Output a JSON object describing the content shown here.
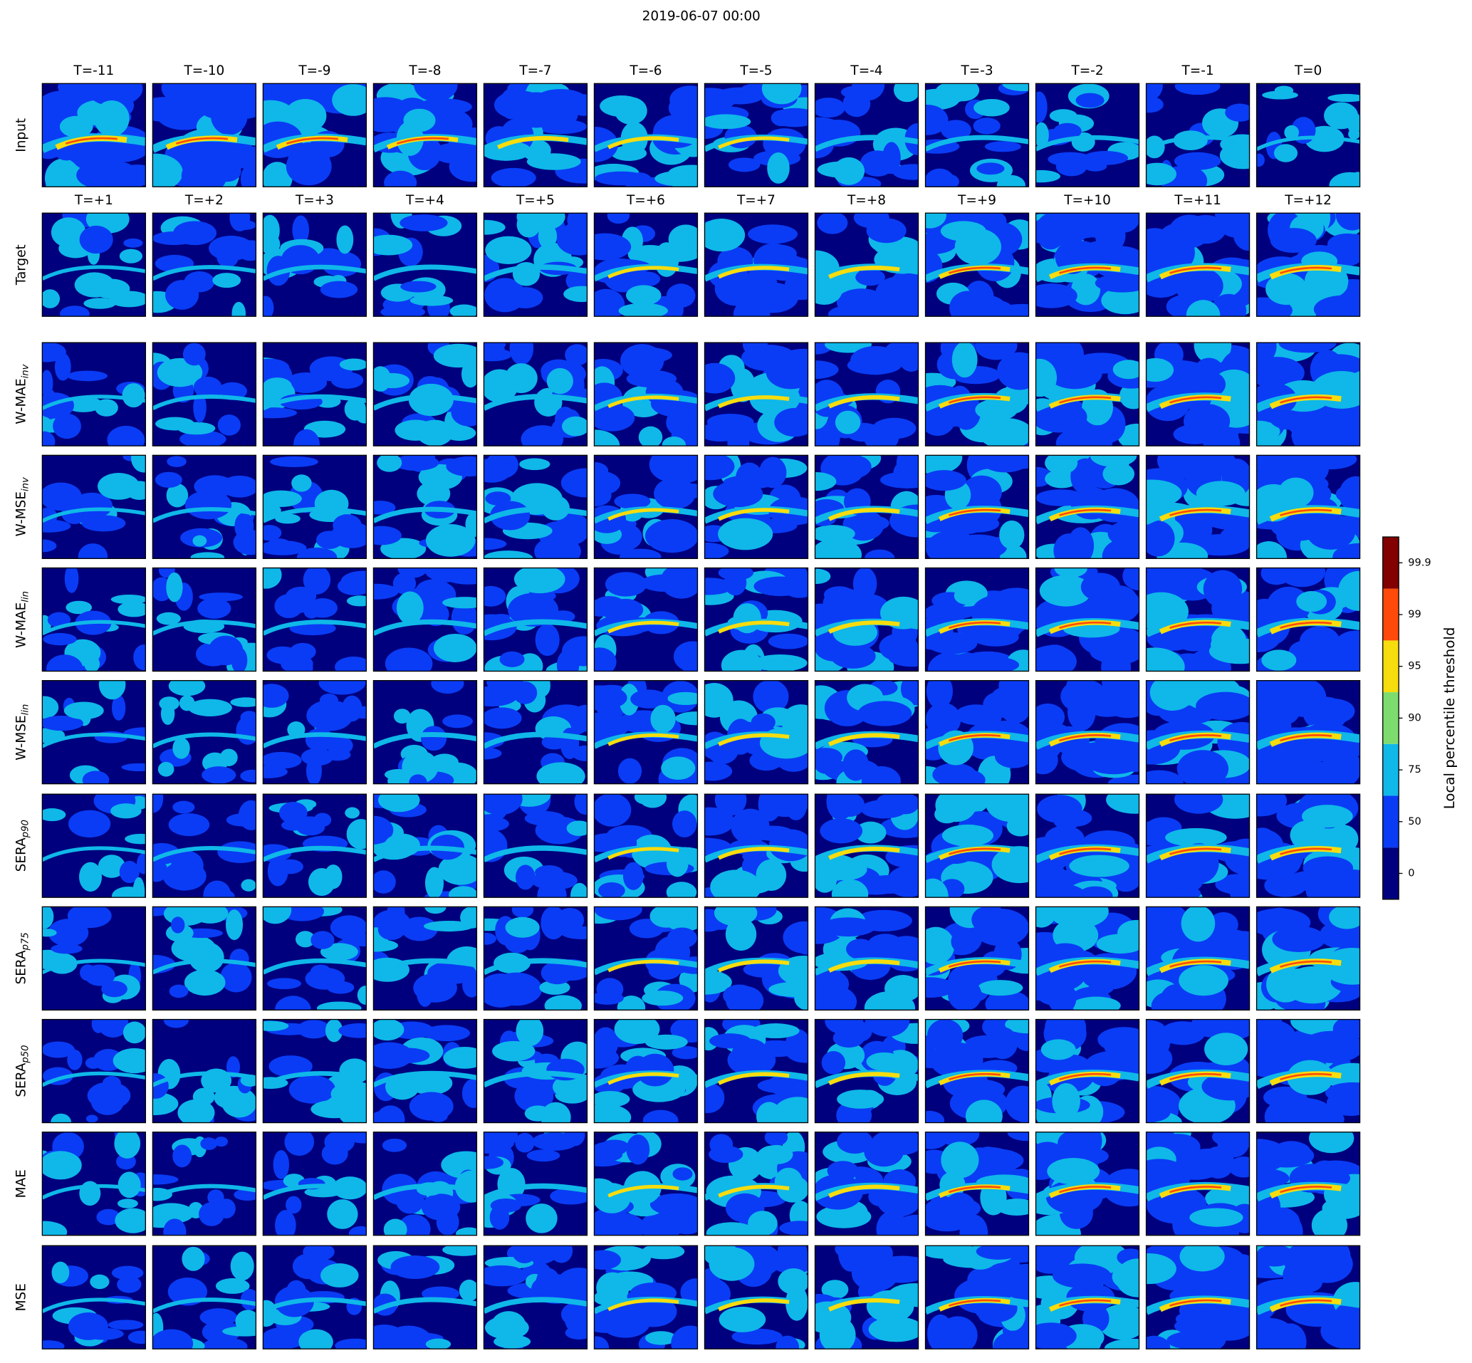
{
  "chart_data": {
    "type": "heatmap-grid",
    "title": "2019-06-07 00:00",
    "input_columns": [
      "T=-11",
      "T=-10",
      "T=-9",
      "T=-8",
      "T=-7",
      "T=-6",
      "T=-5",
      "T=-4",
      "T=-3",
      "T=-2",
      "T=-1",
      "T=0"
    ],
    "target_columns": [
      "T=+1",
      "T=+2",
      "T=+3",
      "T=+4",
      "T=+5",
      "T=+6",
      "T=+7",
      "T=+8",
      "T=+9",
      "T=+10",
      "T=+11",
      "T=+12"
    ],
    "rows": [
      {
        "name": "Input"
      },
      {
        "name": "Target"
      },
      {
        "name": "W-MAE",
        "sub": "inv"
      },
      {
        "name": "W-MSE",
        "sub": "inv"
      },
      {
        "name": "W-MAE",
        "sub": "lin"
      },
      {
        "name": "W-MSE",
        "sub": "lin"
      },
      {
        "name": "SERA",
        "sub": "p90"
      },
      {
        "name": "SERA",
        "sub": "p75"
      },
      {
        "name": "SERA",
        "sub": "p50"
      },
      {
        "name": "MAE"
      },
      {
        "name": "MSE"
      }
    ],
    "colorbar": {
      "label": "Local percentile threshold",
      "ticks": [
        0,
        50,
        75,
        90,
        95,
        99,
        99.9
      ],
      "colors": [
        "#00007f",
        "#0a3cf5",
        "#0fb8e8",
        "#7ddc6e",
        "#f7dc0e",
        "#ff4a0a",
        "#820000"
      ]
    }
  }
}
